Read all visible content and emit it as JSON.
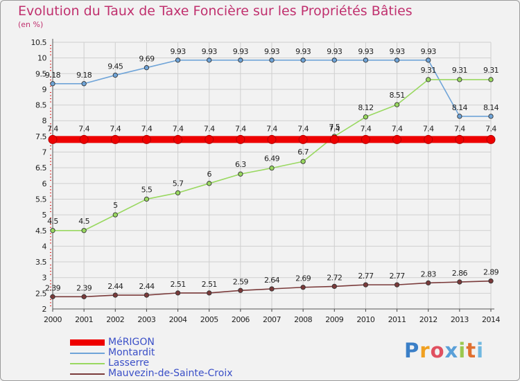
{
  "chart_data": {
    "type": "line",
    "title": "Evolution du Taux de Taxe Foncière sur les Propriétés Bâties",
    "subtitle": "(en %)",
    "x": [
      "2000",
      "2001",
      "2002",
      "2003",
      "2004",
      "2005",
      "2006",
      "2007",
      "2008",
      "2009",
      "2010",
      "2011",
      "2012",
      "2013",
      "2014"
    ],
    "ylim": [
      2,
      10.5
    ],
    "yticks": [
      "2",
      "2.5",
      "3",
      "3.5",
      "4",
      "4.5",
      "5",
      "5.5",
      "6",
      "6.5",
      "7",
      "7.5",
      "8",
      "8.5",
      "9",
      "9.5",
      "10",
      "10.5"
    ],
    "grid": true,
    "series": [
      {
        "name": "MéRIGON",
        "color": "#ee0000",
        "values": [
          7.4,
          7.4,
          7.4,
          7.4,
          7.4,
          7.4,
          7.4,
          7.4,
          7.4,
          7.4,
          7.4,
          7.4,
          7.4,
          7.4,
          7.4
        ],
        "labels": [
          "7.4",
          "7.4",
          "7.4",
          "7.4",
          "7.4",
          "7.4",
          "7.4",
          "7.4",
          "7.4",
          "7.4",
          "7.4",
          "7.4",
          "7.4",
          "7.4",
          "7.4"
        ]
      },
      {
        "name": "Montardit",
        "color": "#6fa4d8",
        "values": [
          9.18,
          9.18,
          9.45,
          9.69,
          9.93,
          9.93,
          9.93,
          9.93,
          9.93,
          9.93,
          9.93,
          9.93,
          9.93,
          8.14,
          8.14
        ],
        "labels": [
          "9.18",
          "9.18",
          "9.45",
          "9.69",
          "9.93",
          "9.93",
          "9.93",
          "9.93",
          "9.93",
          "9.93",
          "9.93",
          "9.93",
          "9.93",
          "8.14",
          "8.14"
        ]
      },
      {
        "name": "Lasserre",
        "color": "#99d860",
        "values": [
          4.5,
          4.5,
          5,
          5.5,
          5.7,
          6,
          6.3,
          6.49,
          6.7,
          7.5,
          8.12,
          8.51,
          9.31,
          9.31,
          9.31
        ],
        "labels": [
          "4.5",
          "4.5",
          "5",
          "5.5",
          "5.7",
          "6",
          "6.3",
          "6.49",
          "6.7",
          "7.5",
          "8.12",
          "8.51",
          "9.31",
          "9.31",
          "9.31"
        ]
      },
      {
        "name": "Mauvezin-de-Sainte-Croix",
        "color": "#7a3a3a",
        "values": [
          2.39,
          2.39,
          2.44,
          2.44,
          2.51,
          2.51,
          2.59,
          2.64,
          2.69,
          2.72,
          2.77,
          2.77,
          2.83,
          2.86,
          2.89
        ],
        "labels": [
          "2.39",
          "2.39",
          "2.44",
          "2.44",
          "2.51",
          "2.51",
          "2.59",
          "2.64",
          "2.69",
          "2.72",
          "2.77",
          "2.77",
          "2.83",
          "2.86",
          "2.89"
        ]
      }
    ]
  },
  "branding": {
    "logo_letters": [
      "P",
      "r",
      "o",
      "x",
      "i",
      "t",
      "i"
    ],
    "logo_colors": [
      "#3b7fc7",
      "#f0a020",
      "#e05060",
      "#5aa0d8",
      "#9ac850",
      "#e07030",
      "#70b8e0"
    ]
  }
}
